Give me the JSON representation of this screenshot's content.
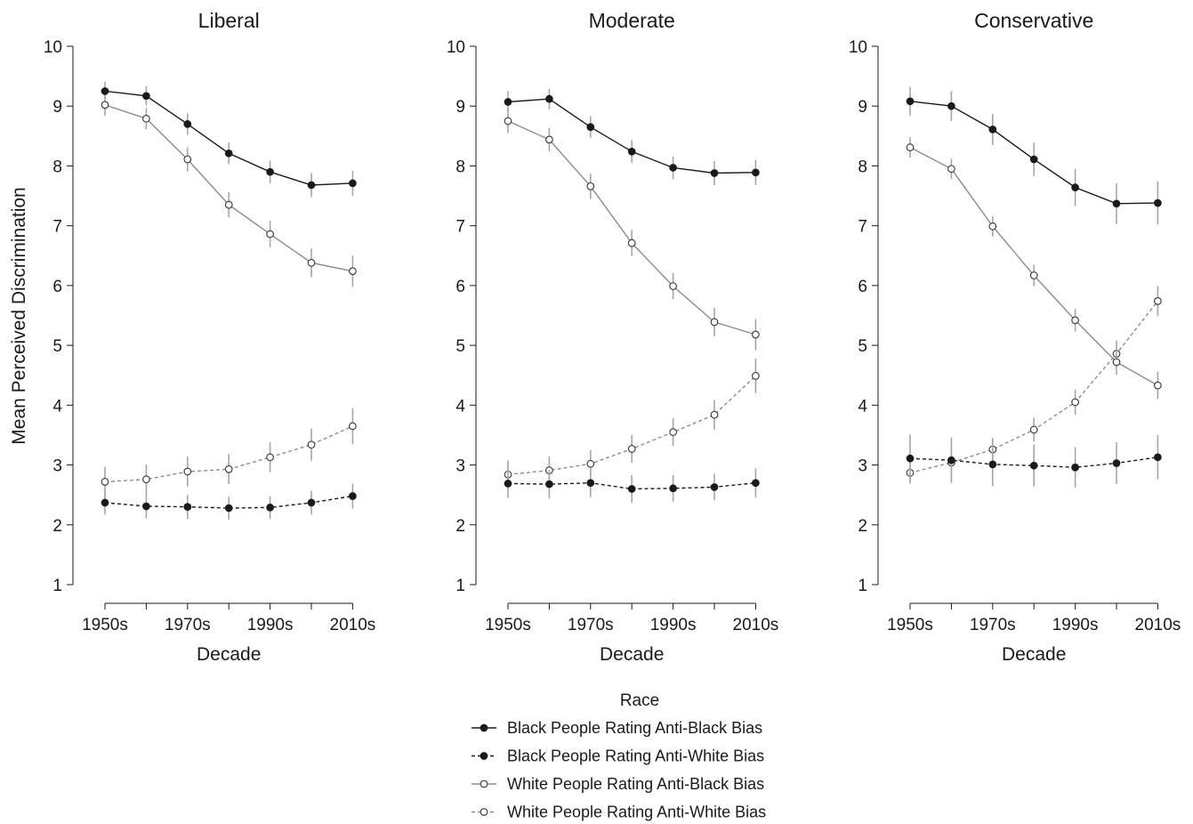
{
  "chart_data": {
    "type": "line",
    "y_axis_label": "Mean Perceived Discrimination",
    "ylim": [
      1,
      10
    ],
    "y_ticks": [
      "1",
      "2",
      "3",
      "4",
      "5",
      "6",
      "7",
      "8",
      "9",
      "10"
    ],
    "x": [
      "1950s",
      "1960s",
      "1970s",
      "1980s",
      "1990s",
      "2000s",
      "2010s"
    ],
    "x_tick_labels": [
      "1950s",
      "1970s",
      "1990s",
      "2010s"
    ],
    "x_axis_label": "Decade",
    "grid": false,
    "legend": {
      "title": "Race",
      "position": "bottom-center",
      "entries": [
        {
          "key": "bb",
          "label": "Black People Rating Anti-Black Bias",
          "color": "#1a1a1a",
          "dashed": false,
          "marker": "filled"
        },
        {
          "key": "bw",
          "label": "Black People Rating Anti-White Bias",
          "color": "#1a1a1a",
          "dashed": true,
          "marker": "filled"
        },
        {
          "key": "wb",
          "label": "White People Rating Anti-Black Bias",
          "color": "#8c8c8c",
          "dashed": false,
          "marker": "open"
        },
        {
          "key": "ww",
          "label": "White People Rating Anti-White Bias",
          "color": "#8c8c8c",
          "dashed": true,
          "marker": "open"
        }
      ]
    },
    "panels": [
      {
        "title": "Liberal",
        "series": [
          {
            "key": "bb",
            "values": [
              9.25,
              9.17,
              8.7,
              8.21,
              7.9,
              7.68,
              7.71
            ],
            "errors": [
              0.16,
              0.16,
              0.18,
              0.18,
              0.19,
              0.2,
              0.21
            ]
          },
          {
            "key": "bw",
            "values": [
              2.37,
              2.31,
              2.3,
              2.28,
              2.29,
              2.37,
              2.48
            ],
            "errors": [
              0.2,
              0.2,
              0.2,
              0.19,
              0.19,
              0.2,
              0.21
            ]
          },
          {
            "key": "wb",
            "values": [
              9.02,
              8.79,
              8.11,
              7.35,
              6.86,
              6.38,
              6.24
            ],
            "errors": [
              0.18,
              0.18,
              0.2,
              0.21,
              0.22,
              0.24,
              0.26
            ]
          },
          {
            "key": "ww",
            "values": [
              2.72,
              2.76,
              2.89,
              2.93,
              3.13,
              3.34,
              3.65
            ],
            "errors": [
              0.25,
              0.25,
              0.25,
              0.25,
              0.25,
              0.27,
              0.3
            ]
          }
        ]
      },
      {
        "title": "Moderate",
        "series": [
          {
            "key": "bb",
            "values": [
              9.07,
              9.12,
              8.65,
              8.24,
              7.97,
              7.88,
              7.89
            ],
            "errors": [
              0.18,
              0.17,
              0.18,
              0.19,
              0.19,
              0.2,
              0.21
            ]
          },
          {
            "key": "bw",
            "values": [
              2.69,
              2.68,
              2.7,
              2.6,
              2.61,
              2.63,
              2.7
            ],
            "errors": [
              0.24,
              0.24,
              0.24,
              0.23,
              0.22,
              0.22,
              0.24
            ]
          },
          {
            "key": "wb",
            "values": [
              8.75,
              8.44,
              7.66,
              6.71,
              5.99,
              5.39,
              5.18
            ],
            "errors": [
              0.2,
              0.2,
              0.21,
              0.22,
              0.22,
              0.24,
              0.26
            ]
          },
          {
            "key": "ww",
            "values": [
              2.84,
              2.91,
              3.02,
              3.27,
              3.55,
              3.84,
              4.49
            ],
            "errors": [
              0.24,
              0.23,
              0.23,
              0.23,
              0.23,
              0.25,
              0.29
            ]
          }
        ]
      },
      {
        "title": "Conservative",
        "series": [
          {
            "key": "bb",
            "values": [
              9.08,
              9.0,
              8.61,
              8.11,
              7.64,
              7.37,
              7.38
            ],
            "errors": [
              0.24,
              0.25,
              0.26,
              0.28,
              0.31,
              0.34,
              0.36
            ]
          },
          {
            "key": "bw",
            "values": [
              3.11,
              3.08,
              3.01,
              2.99,
              2.96,
              3.03,
              3.13
            ],
            "errors": [
              0.4,
              0.38,
              0.36,
              0.35,
              0.34,
              0.35,
              0.37
            ]
          },
          {
            "key": "wb",
            "values": [
              8.31,
              7.95,
              6.99,
              6.17,
              5.42,
              4.72,
              4.33
            ],
            "errors": [
              0.17,
              0.17,
              0.17,
              0.18,
              0.19,
              0.21,
              0.23
            ]
          },
          {
            "key": "ww",
            "values": [
              2.87,
              3.04,
              3.26,
              3.59,
              4.05,
              4.86,
              5.74
            ],
            "errors": [
              0.18,
              0.18,
              0.19,
              0.2,
              0.21,
              0.22,
              0.25
            ]
          }
        ]
      }
    ]
  }
}
